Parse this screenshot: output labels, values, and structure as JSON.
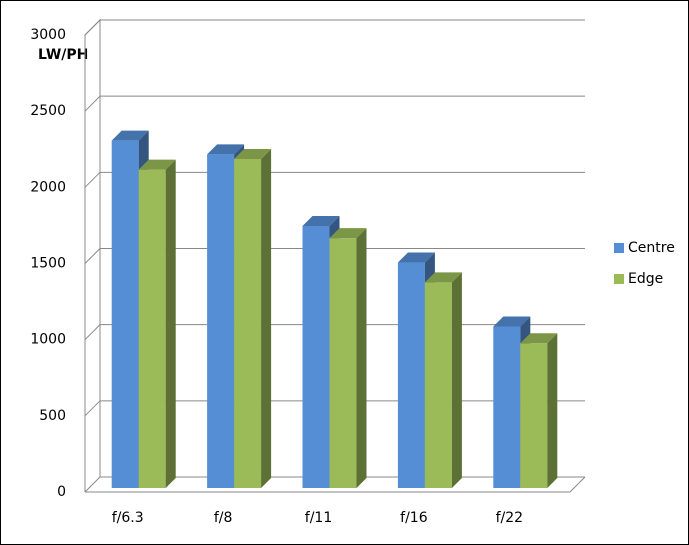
{
  "chart_data": {
    "type": "bar3d",
    "y_label": "LW/PH",
    "categories": [
      "f/6.3",
      "f/8",
      "f/11",
      "f/16",
      "f/22"
    ],
    "series": [
      {
        "name": "Centre",
        "color": "#558ed5",
        "values": [
          2280,
          2190,
          1720,
          1480,
          1060
        ]
      },
      {
        "name": "Edge",
        "color": "#9bbb59",
        "values": [
          2090,
          2160,
          1640,
          1350,
          950
        ]
      }
    ],
    "ylim": [
      0,
      3000
    ],
    "yticks": [
      0,
      500,
      1000,
      1500,
      2000,
      2500,
      3000
    ],
    "grid": true,
    "legend": "right"
  }
}
